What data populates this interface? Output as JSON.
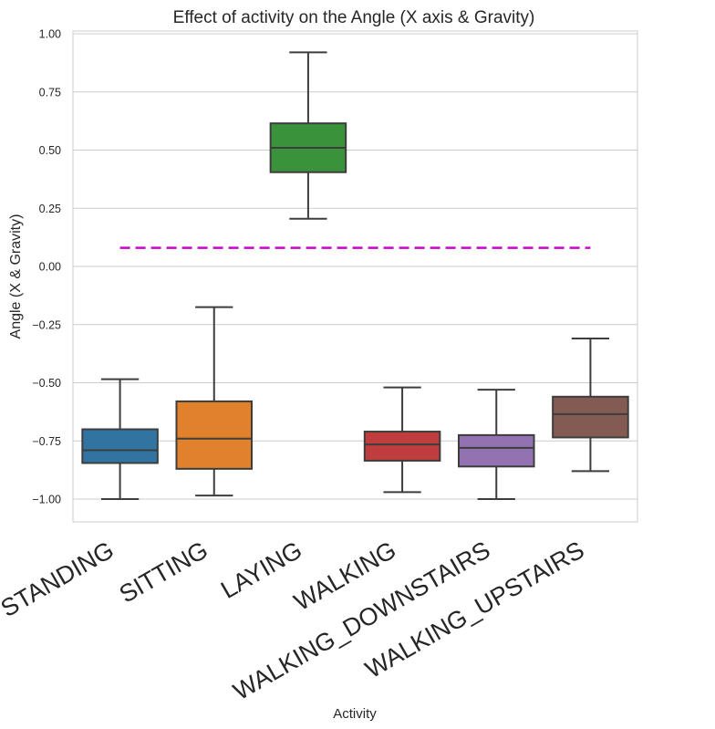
{
  "chart_data": {
    "type": "box",
    "title": "Effect of activity on the Angle (X axis & Gravity)",
    "xlabel": "Activity",
    "ylabel": "Angle (X & Gravity)",
    "ylim": [
      -1.1,
      1.02
    ],
    "yticks": [
      -1.0,
      -0.75,
      -0.5,
      -0.25,
      0.0,
      0.25,
      0.5,
      0.75,
      1.0
    ],
    "ytick_labels": [
      "−1.00",
      "−0.75",
      "−0.50",
      "−0.25",
      "0.00",
      "0.25",
      "0.50",
      "0.75",
      "1.00"
    ],
    "grid": true,
    "categories": [
      "STANDING",
      "SITTING",
      "LAYING",
      "WALKING",
      "WALKING_DOWNSTAIRS",
      "WALKING_UPSTAIRS"
    ],
    "boxes": [
      {
        "category": "STANDING",
        "whisker_low": -1.0,
        "q1": -0.845,
        "median": -0.79,
        "q3": -0.7,
        "whisker_high": -0.485,
        "color": "#3274a1"
      },
      {
        "category": "SITTING",
        "whisker_low": -0.985,
        "q1": -0.87,
        "median": -0.74,
        "q3": -0.58,
        "whisker_high": -0.175,
        "color": "#e1812c"
      },
      {
        "category": "LAYING",
        "whisker_low": 0.205,
        "q1": 0.405,
        "median": 0.51,
        "q3": 0.615,
        "whisker_high": 0.92,
        "color": "#3a923a"
      },
      {
        "category": "WALKING",
        "whisker_low": -0.97,
        "q1": -0.835,
        "median": -0.765,
        "q3": -0.71,
        "whisker_high": -0.52,
        "color": "#c03d3e"
      },
      {
        "category": "WALKING_DOWNSTAIRS",
        "whisker_low": -1.0,
        "q1": -0.86,
        "median": -0.78,
        "q3": -0.725,
        "whisker_high": -0.53,
        "color": "#9372b2"
      },
      {
        "category": "WALKING_UPSTAIRS",
        "whisker_low": -0.88,
        "q1": -0.735,
        "median": -0.635,
        "q3": -0.56,
        "whisker_high": -0.31,
        "color": "#845b53"
      }
    ],
    "reference_line": {
      "y": 0.08,
      "from_category": "STANDING",
      "to_category": "WALKING_UPSTAIRS",
      "color": "#cc00cc",
      "style": "dashed"
    }
  }
}
